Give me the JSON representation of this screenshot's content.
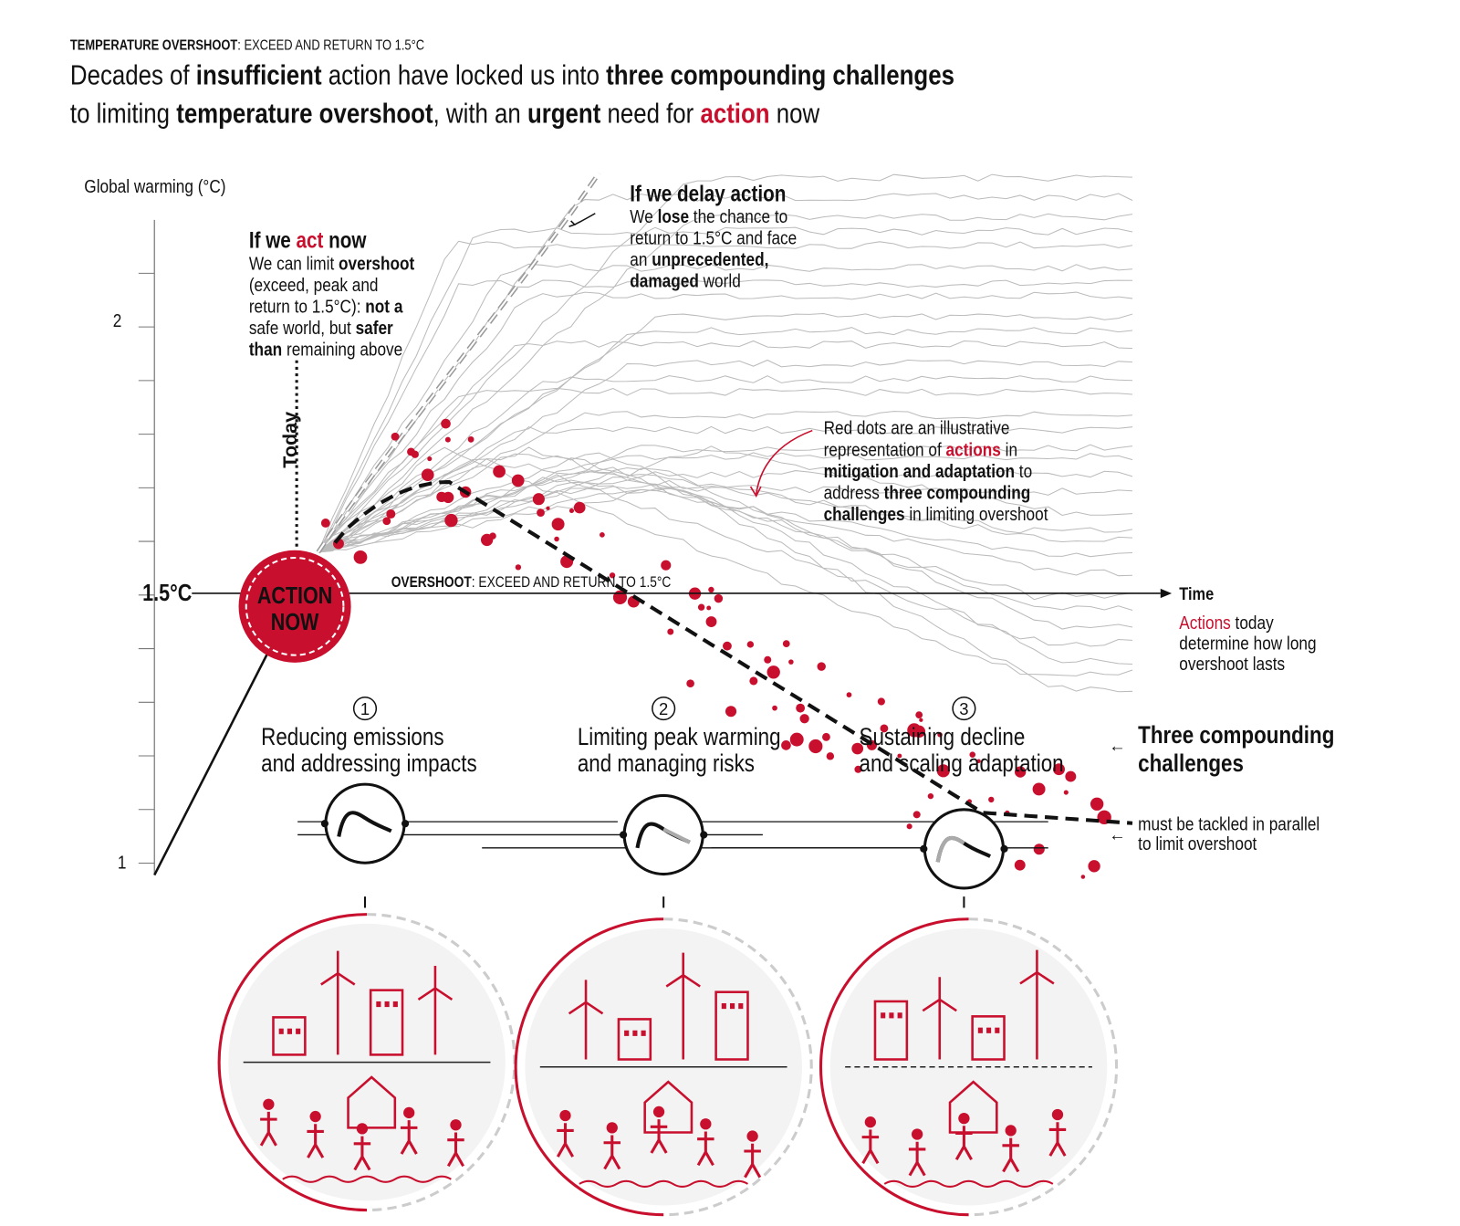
{
  "header": {
    "label": [
      "TEMPERATURE OVERSHOOT",
      ": EXCEED AND RETURN TO 1.5°C"
    ],
    "headline": [
      [
        "Decades of ",
        "insufficient",
        " action have locked us into ",
        "three compounding challenges"
      ],
      [
        "to limiting ",
        "temperature overshoot",
        ", with an ",
        "urgent",
        " need for ",
        "action",
        " now"
      ]
    ]
  },
  "axis": {
    "title": "Global warming (°C)",
    "ticks": [
      "2",
      "1.5°C",
      "1"
    ],
    "time": "Time"
  },
  "act_now": {
    "title": [
      "If we ",
      "act",
      " now"
    ],
    "body": [
      [
        "We can limit ",
        "overshoot"
      ],
      [
        "(exceed, peak and"
      ],
      [
        "return to 1.5°C): ",
        "not a"
      ],
      [
        "safe world, but ",
        "safer"
      ],
      [
        "than",
        " remaining above"
      ]
    ]
  },
  "delay": {
    "title": [
      "If we delay action"
    ],
    "body": [
      [
        "We ",
        "lose",
        " the chance to"
      ],
      [
        "return to 1.5°C and face"
      ],
      [
        "an ",
        "unprecedented,"
      ],
      [
        "damaged",
        " world"
      ]
    ]
  },
  "dots_note": [
    [
      "Red dots are an illustrative"
    ],
    [
      "representation of ",
      "actions",
      " in"
    ],
    [
      "mitigation and adaptation",
      " to"
    ],
    [
      "address ",
      "three compounding"
    ],
    [
      "challenges",
      " in limiting overshoot"
    ]
  ],
  "today": "Today",
  "action_now": [
    "ACTION",
    "NOW"
  ],
  "overshoot_label": [
    "OVERSHOOT",
    ": EXCEED AND RETURN TO 1.5°C"
  ],
  "actions_today": [
    [
      "Actions",
      " today"
    ],
    [
      "determine how long"
    ],
    [
      "overshoot lasts"
    ]
  ],
  "challenges": [
    {
      "number": "1",
      "lines": [
        "Reducing emissions",
        "and addressing impacts"
      ]
    },
    {
      "number": "2",
      "lines": [
        "Limiting peak warming",
        "and managing risks"
      ]
    },
    {
      "number": "3",
      "lines": [
        "Sustaining decline",
        "and scaling adaptation"
      ]
    }
  ],
  "three_compounding": [
    "Three compounding",
    "challenges"
  ],
  "parallel": [
    "must be tackled in parallel",
    "to limit overshoot"
  ]
}
